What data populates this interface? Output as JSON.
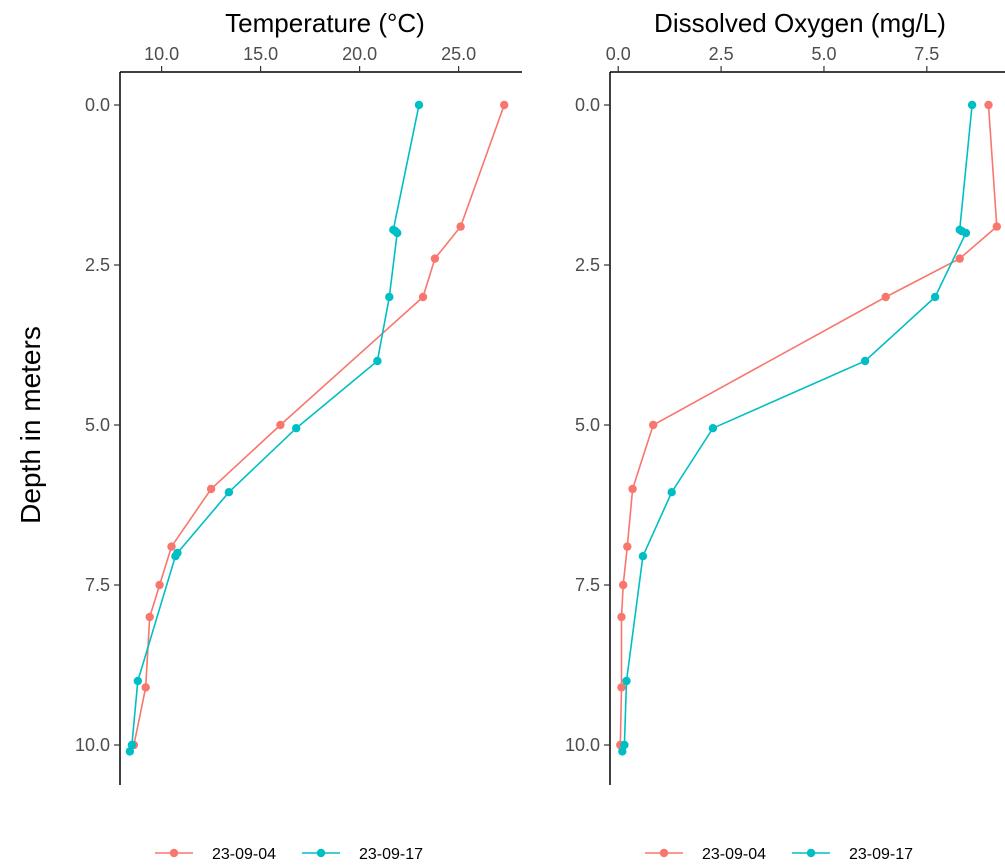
{
  "figure": {
    "ylabel": "Depth in meters",
    "legend_title": "",
    "legend": [
      {
        "label": "23-09-04",
        "color": "#F8766D"
      },
      {
        "label": "23-09-17",
        "color": "#00BFC4"
      }
    ]
  },
  "chart_data": [
    {
      "type": "line",
      "title": "Temperature (°C)",
      "xlabel": "Temperature (°C)",
      "ylabel": "Depth in meters",
      "x_axis_position": "top",
      "y_reversed": true,
      "xlim": [
        7.9,
        28.2
      ],
      "ylim": [
        0,
        10.5
      ],
      "x_ticks": [
        10,
        15,
        20,
        25
      ],
      "x_tick_labels": [
        "10.0",
        "15.0",
        "20.0",
        "25.0"
      ],
      "y_ticks": [
        0,
        2.5,
        5,
        7.5,
        10
      ],
      "y_tick_labels": [
        "0.0",
        "2.5",
        "5.0",
        "7.5",
        "10.0"
      ],
      "grid": false,
      "legend_position": "bottom",
      "series": [
        {
          "name": "23-09-04",
          "color": "#F8766D",
          "x": [
            27.3,
            25.1,
            23.8,
            23.2,
            16.0,
            12.5,
            10.5,
            9.9,
            9.4,
            9.2,
            8.6
          ],
          "y": [
            0.0,
            1.9,
            2.4,
            3.0,
            5.0,
            6.0,
            6.9,
            7.5,
            8.0,
            9.1,
            10.0
          ]
        },
        {
          "name": "23-09-17",
          "color": "#00BFC4",
          "x": [
            23.0,
            21.7,
            21.8,
            21.9,
            21.5,
            20.9,
            16.8,
            13.4,
            10.8,
            10.7,
            8.8,
            8.5,
            8.4
          ],
          "y": [
            0.0,
            1.95,
            1.97,
            2.0,
            3.0,
            4.0,
            5.05,
            6.05,
            7.0,
            7.05,
            9.0,
            10.0,
            10.1
          ]
        }
      ]
    },
    {
      "type": "line",
      "title": "Dissolved Oxygen (mg/L)",
      "xlabel": "Dissolved Oxygen (mg/L)",
      "ylabel": "",
      "x_axis_position": "top",
      "y_reversed": true,
      "xlim": [
        -0.2,
        9.4
      ],
      "ylim": [
        0,
        10.5
      ],
      "x_ticks": [
        0,
        2.5,
        5,
        7.5
      ],
      "x_tick_labels": [
        "0.0",
        "2.5",
        "5.0",
        "7.5"
      ],
      "y_ticks": [
        0,
        2.5,
        5,
        7.5,
        10
      ],
      "y_tick_labels": [
        "0.0",
        "2.5",
        "5.0",
        "7.5",
        "10.0"
      ],
      "grid": false,
      "legend_position": "bottom",
      "series": [
        {
          "name": "23-09-04",
          "color": "#F8766D",
          "x": [
            9.0,
            9.2,
            8.3,
            6.5,
            0.85,
            0.35,
            0.22,
            0.12,
            0.08,
            0.08,
            0.05
          ],
          "y": [
            0.0,
            1.9,
            2.4,
            3.0,
            5.0,
            6.0,
            6.9,
            7.5,
            8.0,
            9.1,
            10.0
          ]
        },
        {
          "name": "23-09-17",
          "color": "#00BFC4",
          "x": [
            8.6,
            8.3,
            8.35,
            8.45,
            7.7,
            6.0,
            2.3,
            1.3,
            0.6,
            0.2,
            0.15,
            0.1
          ],
          "y": [
            0.0,
            1.95,
            1.97,
            2.0,
            3.0,
            4.0,
            5.05,
            6.05,
            7.05,
            9.0,
            10.0,
            10.1
          ]
        }
      ]
    }
  ]
}
